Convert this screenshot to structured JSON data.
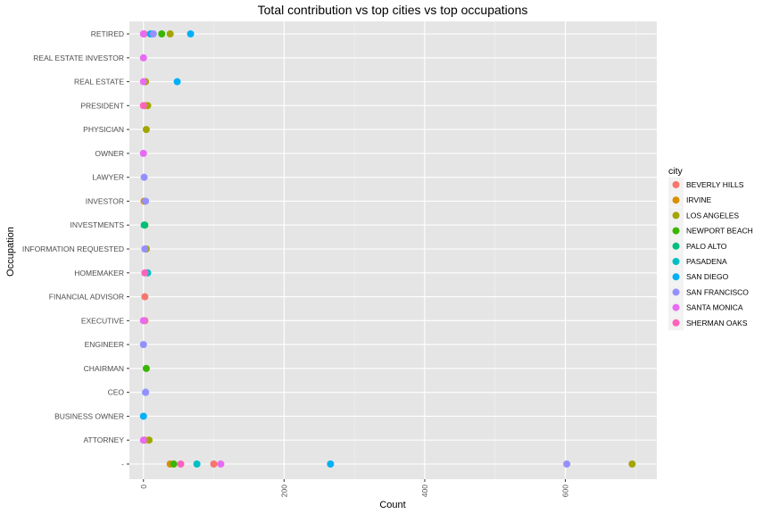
{
  "chart_data": {
    "type": "scatter",
    "title": "Total contribution vs top cities vs top occupations",
    "xlabel": "Count",
    "ylabel": "Occupation",
    "xlim": [
      -20,
      730
    ],
    "xticks": [
      0,
      200,
      400,
      600
    ],
    "grid": true,
    "legend_position": "right",
    "legend_title": "city",
    "categories": [
      "-",
      "ATTORNEY",
      "BUSINESS OWNER",
      "CEO",
      "CHAIRMAN",
      "ENGINEER",
      "EXECUTIVE",
      "FINANCIAL ADVISOR",
      "HOMEMAKER",
      "INFORMATION REQUESTED",
      "INVESTMENTS",
      "INVESTOR",
      "LAWYER",
      "OWNER",
      "PHYSICIAN",
      "PRESIDENT",
      "REAL ESTATE",
      "REAL ESTATE INVESTOR",
      "RETIRED"
    ],
    "series": [
      {
        "name": "BEVERLY HILLS",
        "color": "#F8766D",
        "points": [
          {
            "x": 100,
            "y": "-"
          },
          {
            "x": 2,
            "y": "ATTORNEY"
          },
          {
            "x": 2,
            "y": "EXECUTIVE"
          },
          {
            "x": 2,
            "y": "FINANCIAL ADVISOR"
          },
          {
            "x": 2,
            "y": "PRESIDENT"
          },
          {
            "x": 1,
            "y": "RETIRED"
          }
        ]
      },
      {
        "name": "IRVINE",
        "color": "#D89000",
        "points": [
          {
            "x": 38,
            "y": "-"
          },
          {
            "x": 1,
            "y": "INVESTOR"
          }
        ]
      },
      {
        "name": "LOS ANGELES",
        "color": "#A3A500",
        "points": [
          {
            "x": 695,
            "y": "-"
          },
          {
            "x": 8,
            "y": "ATTORNEY"
          },
          {
            "x": 4,
            "y": "INFORMATION REQUESTED"
          },
          {
            "x": 4,
            "y": "PHYSICIAN"
          },
          {
            "x": 6,
            "y": "PRESIDENT"
          },
          {
            "x": 3,
            "y": "REAL ESTATE"
          },
          {
            "x": 38,
            "y": "RETIRED"
          }
        ]
      },
      {
        "name": "NEWPORT BEACH",
        "color": "#39B600",
        "points": [
          {
            "x": 43,
            "y": "-"
          },
          {
            "x": 4,
            "y": "CHAIRMAN"
          },
          {
            "x": 2,
            "y": "INVESTMENTS"
          },
          {
            "x": 26,
            "y": "RETIRED"
          }
        ]
      },
      {
        "name": "PALO ALTO",
        "color": "#00BF7D",
        "points": [
          {
            "x": 1,
            "y": "INVESTMENTS"
          }
        ]
      },
      {
        "name": "PASADENA",
        "color": "#00BFC4",
        "points": [
          {
            "x": 76,
            "y": "-"
          },
          {
            "x": 6,
            "y": "HOMEMAKER"
          },
          {
            "x": 3,
            "y": "CEO"
          }
        ]
      },
      {
        "name": "SAN DIEGO",
        "color": "#00B0F6",
        "points": [
          {
            "x": 266,
            "y": "-"
          },
          {
            "x": 0,
            "y": "BUSINESS OWNER"
          },
          {
            "x": 48,
            "y": "REAL ESTATE"
          },
          {
            "x": 67,
            "y": "RETIRED"
          },
          {
            "x": 10,
            "y": "RETIRED"
          }
        ]
      },
      {
        "name": "SAN FRANCISCO",
        "color": "#9590FF",
        "points": [
          {
            "x": 602,
            "y": "-"
          },
          {
            "x": 0,
            "y": "ENGINEER"
          },
          {
            "x": 1,
            "y": "LAWYER"
          },
          {
            "x": 3,
            "y": "INVESTOR"
          },
          {
            "x": 2,
            "y": "INFORMATION REQUESTED"
          },
          {
            "x": 3,
            "y": "CEO"
          },
          {
            "x": 14,
            "y": "RETIRED"
          }
        ]
      },
      {
        "name": "SANTA MONICA",
        "color": "#E76BF3",
        "points": [
          {
            "x": 110,
            "y": "-"
          },
          {
            "x": 0,
            "y": "OWNER"
          },
          {
            "x": 0,
            "y": "REAL ESTATE INVESTOR"
          },
          {
            "x": 0,
            "y": "EXECUTIVE"
          },
          {
            "x": 0,
            "y": "REAL ESTATE"
          },
          {
            "x": 0,
            "y": "ATTORNEY"
          },
          {
            "x": 0,
            "y": "RETIRED"
          }
        ]
      },
      {
        "name": "SHERMAN OAKS",
        "color": "#FF62BC",
        "points": [
          {
            "x": 53,
            "y": "-"
          },
          {
            "x": 2,
            "y": "HOMEMAKER"
          },
          {
            "x": 0,
            "y": "PRESIDENT"
          }
        ]
      }
    ]
  }
}
